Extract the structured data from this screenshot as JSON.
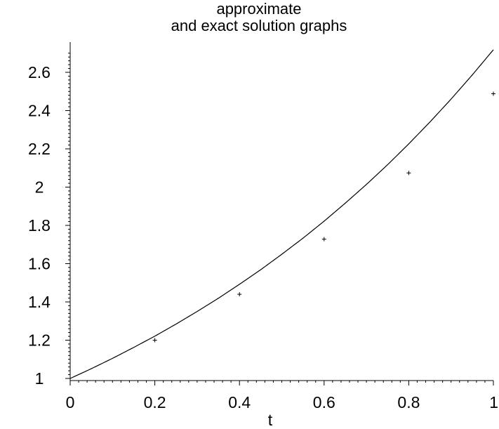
{
  "chart_data": {
    "type": "line",
    "title_lines": [
      "approximate",
      "and exact solution graphs"
    ],
    "xlabel": "t",
    "ylabel": "",
    "xlim": [
      0,
      1
    ],
    "ylim": [
      0.98,
      2.75
    ],
    "x_ticks": [
      0,
      0.2,
      0.4,
      0.6,
      0.8,
      1
    ],
    "x_tick_labels": [
      "0",
      "0.2",
      "0.4",
      "0.6",
      "0.8",
      "1"
    ],
    "y_ticks": [
      1,
      1.2,
      1.4,
      1.6,
      1.8,
      2,
      2.2,
      2.4,
      2.6
    ],
    "y_tick_labels": [
      "1",
      "1.2",
      "1.4",
      "1.6",
      "1.8",
      "2",
      "2.2",
      "2.4",
      "2.6"
    ],
    "grid": false,
    "series": [
      {
        "style": "line",
        "color": "#000000",
        "x": [
          0,
          0.05,
          0.1,
          0.15,
          0.2,
          0.25,
          0.3,
          0.35,
          0.4,
          0.45,
          0.5,
          0.55,
          0.6,
          0.65,
          0.7,
          0.75,
          0.8,
          0.85,
          0.9,
          0.95,
          1
        ],
        "y": [
          1,
          1.051,
          1.105,
          1.162,
          1.221,
          1.284,
          1.35,
          1.419,
          1.492,
          1.568,
          1.649,
          1.733,
          1.822,
          1.916,
          2.014,
          2.117,
          2.226,
          2.34,
          2.46,
          2.586,
          2.718
        ]
      },
      {
        "style": "points",
        "marker": "cross",
        "color": "#000000",
        "x": [
          0.2,
          0.4,
          0.6,
          0.8,
          1
        ],
        "y": [
          1.2,
          1.44,
          1.728,
          2.074,
          2.488
        ]
      }
    ]
  }
}
